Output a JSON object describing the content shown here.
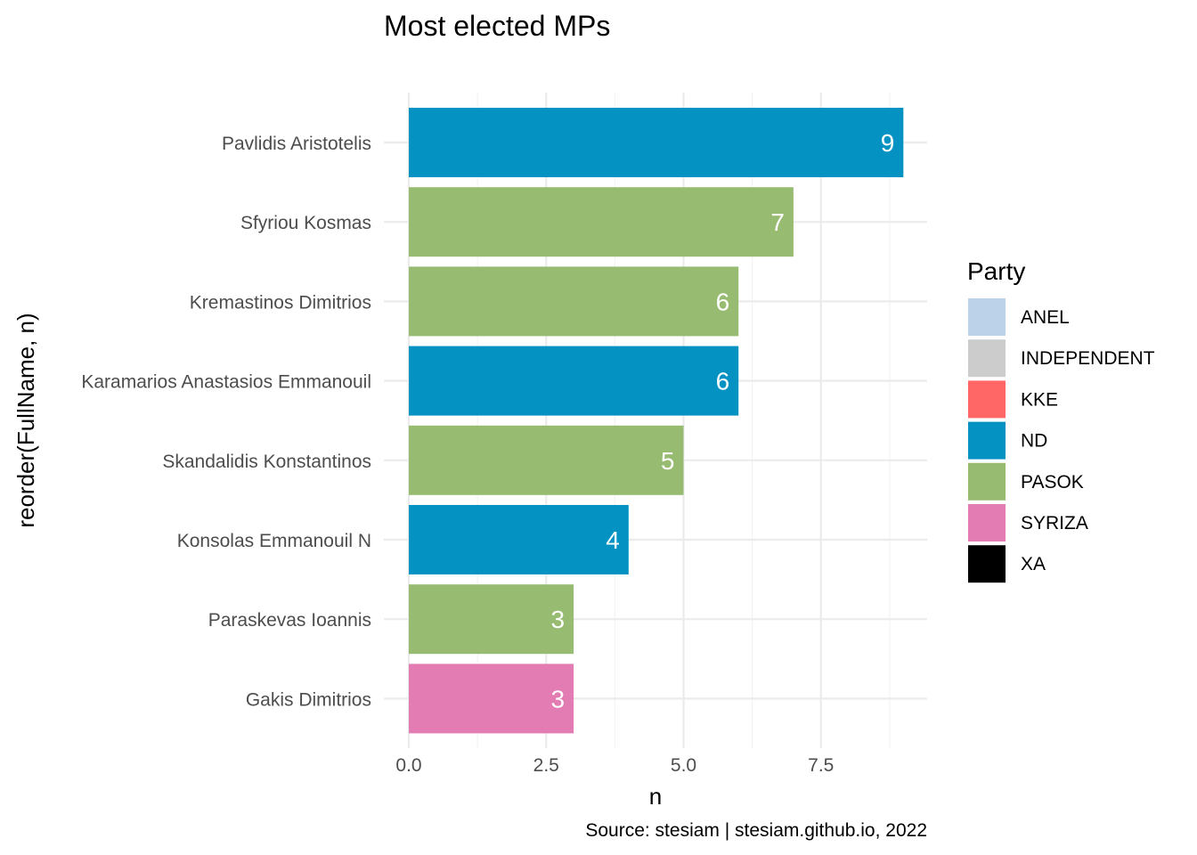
{
  "chart_data": {
    "type": "bar",
    "orientation": "horizontal",
    "title": "Most elected MPs",
    "xlabel": "n",
    "ylabel": "reorder(FullName, n)",
    "caption": "Source: stesiam | stesiam.github.io, 2022",
    "xlim": [
      0,
      9
    ],
    "x_ticks": [
      "0.0",
      "2.5",
      "5.0",
      "7.5"
    ],
    "x_tick_values": [
      0,
      2.5,
      5,
      7.5
    ],
    "grid": true,
    "legend_position": "right",
    "legend": {
      "title": "Party",
      "entries": [
        {
          "label": "ANEL",
          "color": "#bcd2e8"
        },
        {
          "label": "INDEPENDENT",
          "color": "#cccccc"
        },
        {
          "label": "KKE",
          "color": "#ff6666"
        },
        {
          "label": "ND",
          "color": "#0492c2"
        },
        {
          "label": "PASOK",
          "color": "#97bb71"
        },
        {
          "label": "SYRIZA",
          "color": "#e27cb3"
        },
        {
          "label": "XA",
          "color": "#000000"
        }
      ]
    },
    "bars": [
      {
        "name": "Pavlidis Aristotelis",
        "value": 9,
        "party": "ND"
      },
      {
        "name": "Sfyriou Kosmas",
        "value": 7,
        "party": "PASOK"
      },
      {
        "name": "Kremastinos Dimitrios",
        "value": 6,
        "party": "PASOK"
      },
      {
        "name": "Karamarios Anastasios Emmanouil",
        "value": 6,
        "party": "ND"
      },
      {
        "name": "Skandalidis Konstantinos",
        "value": 5,
        "party": "PASOK"
      },
      {
        "name": "Konsolas Emmanouil N",
        "value": 4,
        "party": "ND"
      },
      {
        "name": "Paraskevas Ioannis",
        "value": 3,
        "party": "PASOK"
      },
      {
        "name": "Gakis Dimitrios",
        "value": 3,
        "party": "SYRIZA"
      }
    ]
  }
}
